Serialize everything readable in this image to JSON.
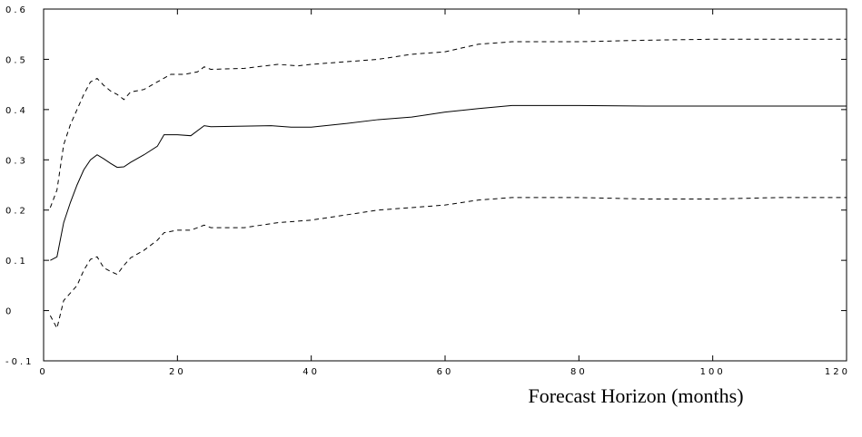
{
  "chart_data": {
    "type": "line",
    "title": "",
    "xlabel": "Forecast Horizon (months)",
    "ylabel": "",
    "xlim": [
      0,
      120
    ],
    "ylim": [
      -0.1,
      0.6
    ],
    "grid": false,
    "legend": "none",
    "x_ticks": [
      0,
      20,
      40,
      60,
      80,
      100,
      120
    ],
    "y_ticks": [
      -0.1,
      0,
      0.1,
      0.2,
      0.3,
      0.4,
      0.5,
      0.6
    ],
    "x_tick_labels": [
      "0",
      "20",
      "40",
      "60",
      "80",
      "100",
      "120"
    ],
    "y_tick_labels": [
      "-0.1",
      "0",
      "0.1",
      "0.2",
      "0.3",
      "0.4",
      "0.5",
      "0.6"
    ],
    "series": [
      {
        "style": "dashed",
        "color": "#000000",
        "points": [
          [
            1,
            0.205
          ],
          [
            2,
            0.24
          ],
          [
            3,
            0.33
          ],
          [
            4,
            0.37
          ],
          [
            5,
            0.4
          ],
          [
            6,
            0.43
          ],
          [
            7,
            0.455
          ],
          [
            8,
            0.462
          ],
          [
            9,
            0.448
          ],
          [
            10,
            0.437
          ],
          [
            11,
            0.43
          ],
          [
            12,
            0.42
          ],
          [
            13,
            0.435
          ],
          [
            15,
            0.44
          ],
          [
            17,
            0.455
          ],
          [
            19,
            0.47
          ],
          [
            21,
            0.47
          ],
          [
            23,
            0.475
          ],
          [
            24,
            0.485
          ],
          [
            25,
            0.48
          ],
          [
            30,
            0.482
          ],
          [
            35,
            0.49
          ],
          [
            38,
            0.487
          ],
          [
            40,
            0.49
          ],
          [
            45,
            0.495
          ],
          [
            50,
            0.5
          ],
          [
            55,
            0.51
          ],
          [
            60,
            0.515
          ],
          [
            65,
            0.53
          ],
          [
            70,
            0.535
          ],
          [
            80,
            0.535
          ],
          [
            90,
            0.538
          ],
          [
            100,
            0.54
          ],
          [
            110,
            0.54
          ],
          [
            120,
            0.54
          ]
        ]
      },
      {
        "style": "solid",
        "color": "#000000",
        "points": [
          [
            1,
            0.1
          ],
          [
            2,
            0.107
          ],
          [
            3,
            0.175
          ],
          [
            4,
            0.215
          ],
          [
            5,
            0.25
          ],
          [
            6,
            0.28
          ],
          [
            7,
            0.3
          ],
          [
            8,
            0.31
          ],
          [
            9,
            0.302
          ],
          [
            10,
            0.293
          ],
          [
            11,
            0.285
          ],
          [
            12,
            0.286
          ],
          [
            13,
            0.295
          ],
          [
            15,
            0.31
          ],
          [
            17,
            0.327
          ],
          [
            18,
            0.35
          ],
          [
            20,
            0.35
          ],
          [
            22,
            0.348
          ],
          [
            24,
            0.368
          ],
          [
            25,
            0.366
          ],
          [
            30,
            0.367
          ],
          [
            34,
            0.368
          ],
          [
            37,
            0.365
          ],
          [
            40,
            0.365
          ],
          [
            45,
            0.372
          ],
          [
            50,
            0.38
          ],
          [
            55,
            0.385
          ],
          [
            60,
            0.395
          ],
          [
            65,
            0.402
          ],
          [
            70,
            0.408
          ],
          [
            80,
            0.408
          ],
          [
            90,
            0.407
          ],
          [
            100,
            0.407
          ],
          [
            110,
            0.407
          ],
          [
            120,
            0.407
          ]
        ]
      },
      {
        "style": "dashed",
        "color": "#000000",
        "points": [
          [
            1,
            -0.01
          ],
          [
            2,
            -0.035
          ],
          [
            3,
            0.02
          ],
          [
            4,
            0.035
          ],
          [
            5,
            0.05
          ],
          [
            6,
            0.08
          ],
          [
            7,
            0.102
          ],
          [
            8,
            0.107
          ],
          [
            9,
            0.085
          ],
          [
            10,
            0.078
          ],
          [
            11,
            0.072
          ],
          [
            12,
            0.09
          ],
          [
            13,
            0.105
          ],
          [
            15,
            0.12
          ],
          [
            17,
            0.14
          ],
          [
            18,
            0.155
          ],
          [
            20,
            0.16
          ],
          [
            22,
            0.16
          ],
          [
            24,
            0.17
          ],
          [
            25,
            0.165
          ],
          [
            30,
            0.165
          ],
          [
            35,
            0.175
          ],
          [
            40,
            0.18
          ],
          [
            45,
            0.19
          ],
          [
            50,
            0.2
          ],
          [
            55,
            0.205
          ],
          [
            60,
            0.21
          ],
          [
            65,
            0.22
          ],
          [
            70,
            0.225
          ],
          [
            80,
            0.225
          ],
          [
            90,
            0.222
          ],
          [
            100,
            0.222
          ],
          [
            110,
            0.225
          ],
          [
            120,
            0.225
          ]
        ]
      }
    ]
  }
}
